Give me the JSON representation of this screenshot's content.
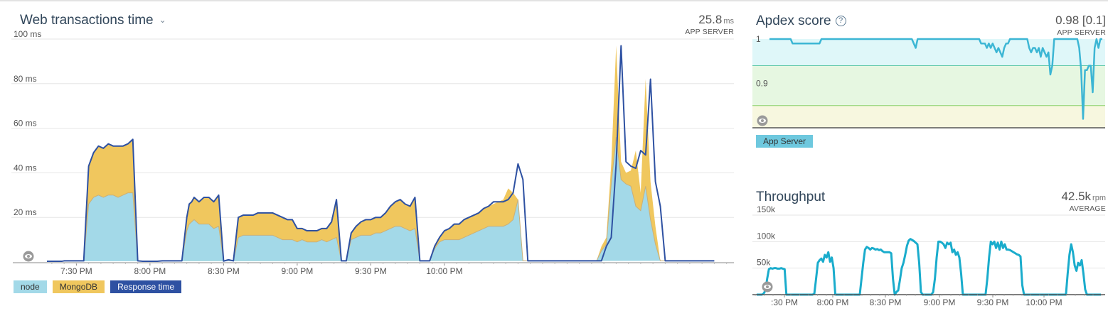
{
  "web_transactions": {
    "title": "Web transactions time",
    "metric_value": "25.8",
    "metric_unit": "ms",
    "metric_label": "APP SERVER",
    "legend": [
      {
        "label": "node",
        "color": "#a3d9e8"
      },
      {
        "label": "MongoDB",
        "color": "#f0c75e"
      },
      {
        "label": "Response time",
        "color": "#2e51a2"
      }
    ]
  },
  "apdex": {
    "title": "Apdex score",
    "metric_value": "0.98 [0.1]",
    "metric_label": "APP SERVER",
    "legend": [
      {
        "label": "App Server",
        "color": "#6ec8de"
      }
    ]
  },
  "throughput": {
    "title": "Throughput",
    "metric_value": "42.5k",
    "metric_unit": "rpm",
    "metric_label": "AVERAGE"
  },
  "chart_data": [
    {
      "type": "area",
      "title": "Web transactions time",
      "y_tick_labels": [
        "100 ms",
        "80 ms",
        "60 ms",
        "40 ms",
        "20 ms"
      ],
      "x_tick_labels": [
        "7:30 PM",
        "8:00 PM",
        "8:30 PM",
        "9:00 PM",
        "9:30 PM",
        "10:00 PM"
      ],
      "ylim": [
        0,
        100
      ],
      "x_minutes_since_7pm": [
        18,
        24,
        25,
        27,
        29,
        31,
        33,
        35,
        37,
        39,
        41,
        43,
        45,
        47,
        49,
        51,
        53,
        55,
        57,
        59,
        61,
        63,
        65,
        67,
        69,
        71,
        73,
        75,
        76,
        77,
        78,
        79,
        80,
        82,
        84,
        86,
        88,
        90,
        92,
        94,
        96,
        98,
        100,
        102,
        104,
        106,
        108,
        110,
        112,
        114,
        116,
        118,
        120,
        122,
        124,
        126,
        128,
        130,
        132,
        134,
        136,
        138,
        140,
        142,
        144,
        146,
        148,
        150,
        152,
        154,
        156,
        158,
        160,
        162,
        164,
        166,
        168,
        170,
        172,
        174,
        176,
        178,
        180,
        182,
        184,
        186,
        188,
        190,
        192,
        194,
        196,
        198,
        200,
        202,
        204,
        206,
        208,
        210,
        212,
        214,
        216,
        218,
        220,
        222,
        224,
        226,
        228,
        230,
        232,
        234,
        236,
        238,
        240,
        242,
        244,
        246,
        248,
        250,
        252,
        254,
        256,
        258,
        260,
        262,
        264,
        266,
        268,
        270,
        272,
        274,
        276,
        278,
        280,
        282,
        284,
        286,
        288,
        290,
        292,
        294,
        296,
        298
      ],
      "series": [
        {
          "name": "node",
          "color": "#a3d9e8",
          "values": [
            0.3,
            0.3,
            0.5,
            0.5,
            0.5,
            0.5,
            0.5,
            26,
            29,
            30,
            29,
            30,
            30,
            29,
            30,
            31,
            31,
            0.5,
            0.3,
            0.3,
            0.3,
            0.3,
            0.5,
            0.5,
            0.5,
            0.5,
            0.5,
            14,
            17,
            18,
            19,
            18,
            17,
            17,
            17,
            15,
            16,
            0.4,
            1,
            0.5,
            11,
            12,
            12,
            12,
            12,
            12,
            12,
            12,
            11,
            10,
            10,
            10,
            9,
            10,
            9,
            9,
            9,
            10,
            9,
            10,
            11,
            0.5,
            0.5,
            10,
            11,
            12,
            12,
            12,
            13,
            13,
            14,
            15,
            16,
            16,
            15,
            14,
            15,
            0.5,
            0.5,
            0.5,
            6,
            9,
            10,
            10,
            10,
            10,
            11,
            12,
            13,
            14,
            15,
            16,
            16,
            16,
            16,
            17,
            19,
            28,
            0.5,
            0.5,
            0.5,
            0.5,
            0.5,
            0.5,
            0.5,
            0.5,
            0.5,
            0.5,
            0.5,
            0.5,
            0.5,
            0.5,
            0.5,
            0.5,
            5,
            8,
            35,
            56,
            37,
            35,
            34,
            25,
            23,
            34,
            19,
            8,
            0.5,
            0.5,
            0.5,
            0.5,
            0.5,
            0.5,
            0.5,
            0.5,
            0.5,
            0.5,
            0.5
          ]
        },
        {
          "name": "MongoDB",
          "color": "#f0c75e",
          "values": [
            0,
            0,
            0,
            0,
            0,
            0,
            0,
            17,
            20,
            22,
            22,
            23,
            22,
            23,
            22,
            22,
            24,
            0,
            0,
            0,
            0,
            0,
            0,
            0,
            0,
            0,
            0,
            6,
            9,
            9,
            10,
            10,
            10,
            12,
            12,
            12,
            14,
            0,
            0,
            0,
            9,
            9,
            9,
            9,
            10,
            10,
            10,
            10,
            10,
            10,
            9,
            9,
            6,
            5,
            5,
            5,
            5,
            5,
            6,
            8,
            17,
            0,
            0,
            3,
            5,
            6,
            7,
            7,
            7,
            7,
            8,
            10,
            11,
            12,
            11,
            11,
            14,
            0,
            0,
            0,
            1,
            2,
            4,
            5,
            7,
            7,
            8,
            8,
            8,
            8,
            9,
            9,
            10,
            11,
            12,
            16,
            12,
            0,
            0,
            0,
            0,
            0,
            0,
            0,
            0,
            0,
            0,
            0,
            0,
            0,
            0,
            0,
            0,
            0,
            2,
            3,
            9,
            41,
            8,
            5,
            7,
            25,
            8,
            48,
            17,
            8,
            0,
            0,
            0,
            0,
            0,
            0,
            0,
            0,
            0,
            0,
            0
          ]
        },
        {
          "name": "Response time",
          "color": "#2e51a2",
          "values": [
            0.3,
            0.3,
            0.5,
            0.5,
            0.5,
            0.5,
            0.5,
            43,
            49,
            52,
            51,
            53,
            52,
            52,
            52,
            53,
            55,
            0.5,
            0.3,
            0.3,
            0.3,
            0.3,
            0.5,
            0.5,
            0.5,
            0.5,
            0.5,
            20,
            26,
            27,
            29,
            28,
            27,
            29,
            29,
            27,
            30,
            0.4,
            1,
            0.5,
            20,
            21,
            21,
            21,
            22,
            22,
            22,
            22,
            21,
            20,
            19,
            19,
            15,
            15,
            14,
            14,
            14,
            15,
            15,
            18,
            28,
            0.5,
            0.5,
            13,
            16,
            18,
            19,
            19,
            20,
            20,
            22,
            25,
            27,
            28,
            26,
            25,
            29,
            0.5,
            0.5,
            0.5,
            7,
            11,
            14,
            15,
            17,
            17,
            19,
            20,
            21,
            22,
            24,
            25,
            27,
            27,
            27,
            28,
            31,
            44,
            37,
            0.5,
            0.5,
            0.5,
            0.5,
            0.5,
            0.5,
            0.5,
            0.5,
            0.5,
            0.5,
            0.5,
            0.5,
            0.5,
            0.5,
            0.5,
            0.5,
            7,
            11,
            44,
            97,
            45,
            43,
            42,
            50,
            48,
            82,
            36,
            25,
            0.5,
            0.5,
            0.5,
            0.5,
            0.5,
            0.5,
            0.5,
            0.5,
            0.5,
            0.5,
            0.5
          ]
        }
      ]
    },
    {
      "type": "line",
      "title": "Apdex score",
      "y_tick_labels": [
        "1",
        "0.9"
      ],
      "ylim": [
        0.8,
        1.0
      ],
      "threshold_bands": [
        0.94,
        0.85
      ],
      "series": [
        {
          "name": "App Server",
          "color": "#3cb6d4",
          "values": [
            1,
            1,
            1,
            1,
            1,
            1,
            1,
            1,
            1,
            1,
            1,
            1,
            0.99,
            0.99,
            0.99,
            0.99,
            0.99,
            0.99,
            0.99,
            0.99,
            0.99,
            0.99,
            0.99,
            0.99,
            0.99,
            0.99,
            0.99,
            1,
            1,
            1,
            1,
            1,
            1,
            1,
            1,
            1,
            1,
            1,
            1,
            1,
            1,
            1,
            1,
            1,
            1,
            1,
            1,
            1,
            1,
            1,
            1,
            1,
            1,
            1,
            1,
            1,
            1,
            1,
            1,
            1,
            1,
            1,
            1,
            1,
            1,
            1,
            1,
            1,
            1,
            1,
            1,
            1,
            1,
            1,
            1,
            0.99,
            0.98,
            1,
            1,
            1,
            1,
            1,
            1,
            1,
            1,
            1,
            1,
            1,
            1,
            1,
            1,
            1,
            1,
            1,
            1,
            1,
            1,
            1,
            1,
            1,
            1,
            1,
            1,
            1,
            1,
            1,
            1,
            1,
            1,
            1,
            0.99,
            0.99,
            0.99,
            0.98,
            0.99,
            0.98,
            0.99,
            0.98,
            0.97,
            0.98,
            0.97,
            0.96,
            0.98,
            0.99,
            0.99,
            1,
            1,
            1,
            1,
            1,
            1,
            1,
            1,
            1,
            1,
            0.98,
            0.97,
            0.98,
            0.98,
            0.97,
            0.98,
            0.96,
            0.98,
            0.97,
            0.96,
            0.97,
            0.92,
            0.94,
            1,
            1,
            1,
            1,
            1,
            1,
            1,
            1,
            1,
            1,
            1,
            1,
            1,
            0.98,
            0.93,
            0.82,
            0.93,
            0.93,
            0.94,
            0.94,
            0.88,
            0.98,
            1,
            0.98,
            1,
            1
          ]
        }
      ]
    },
    {
      "type": "line",
      "title": "Throughput",
      "y_tick_labels": [
        "150k",
        "100k",
        "50k"
      ],
      "x_tick_labels": [
        ":30 PM",
        "8:00 PM",
        "8:30 PM",
        "9:00 PM",
        "9:30 PM",
        "10:00 PM"
      ],
      "ylim": [
        0,
        150000
      ],
      "series": [
        {
          "name": "Throughput",
          "color": "#1aaccc",
          "values": [
            0,
            0,
            0,
            0,
            2000,
            8000,
            30000,
            48000,
            50000,
            49000,
            50000,
            50000,
            49000,
            49000,
            50000,
            49000,
            48000,
            0,
            0,
            0,
            0,
            0,
            0,
            0,
            0,
            0,
            0,
            0,
            0,
            0,
            0,
            0,
            0,
            2000,
            30000,
            60000,
            65000,
            68000,
            62000,
            75000,
            70000,
            80000,
            62000,
            70000,
            50000,
            0,
            0,
            0,
            0,
            0,
            0,
            0,
            0,
            0,
            0,
            0,
            0,
            0,
            0,
            0,
            30000,
            60000,
            85000,
            90000,
            88000,
            85000,
            88000,
            87000,
            85000,
            86000,
            84000,
            85000,
            82000,
            80000,
            80000,
            80000,
            80000,
            78000,
            30000,
            0,
            5000,
            8000,
            28000,
            50000,
            60000,
            75000,
            92000,
            102000,
            105000,
            103000,
            101000,
            98000,
            95000,
            60000,
            5000,
            0,
            0,
            0,
            0,
            0,
            0,
            5000,
            30000,
            70000,
            100000,
            100000,
            98000,
            95000,
            88000,
            98000,
            95000,
            98000,
            80000,
            85000,
            75000,
            80000,
            70000,
            40000,
            0,
            0,
            0,
            0,
            0,
            0,
            0,
            0,
            0,
            0,
            0,
            0,
            0,
            0,
            30000,
            70000,
            100000,
            95000,
            100000,
            88000,
            98000,
            85000,
            100000,
            88000,
            95000,
            85000,
            85000,
            84000,
            82000,
            80000,
            78000,
            76000,
            75000,
            72000,
            18000,
            0,
            0,
            0,
            0,
            0,
            0,
            0,
            0,
            0,
            0,
            0,
            0,
            0,
            0,
            0,
            0,
            0,
            0,
            0,
            0,
            0,
            0,
            0,
            0,
            0,
            40000,
            75000,
            95000,
            80000,
            55000,
            45000,
            60000,
            55000,
            65000,
            40000,
            10000,
            0,
            0,
            0,
            0,
            0,
            0,
            0,
            0,
            0
          ]
        }
      ]
    }
  ]
}
